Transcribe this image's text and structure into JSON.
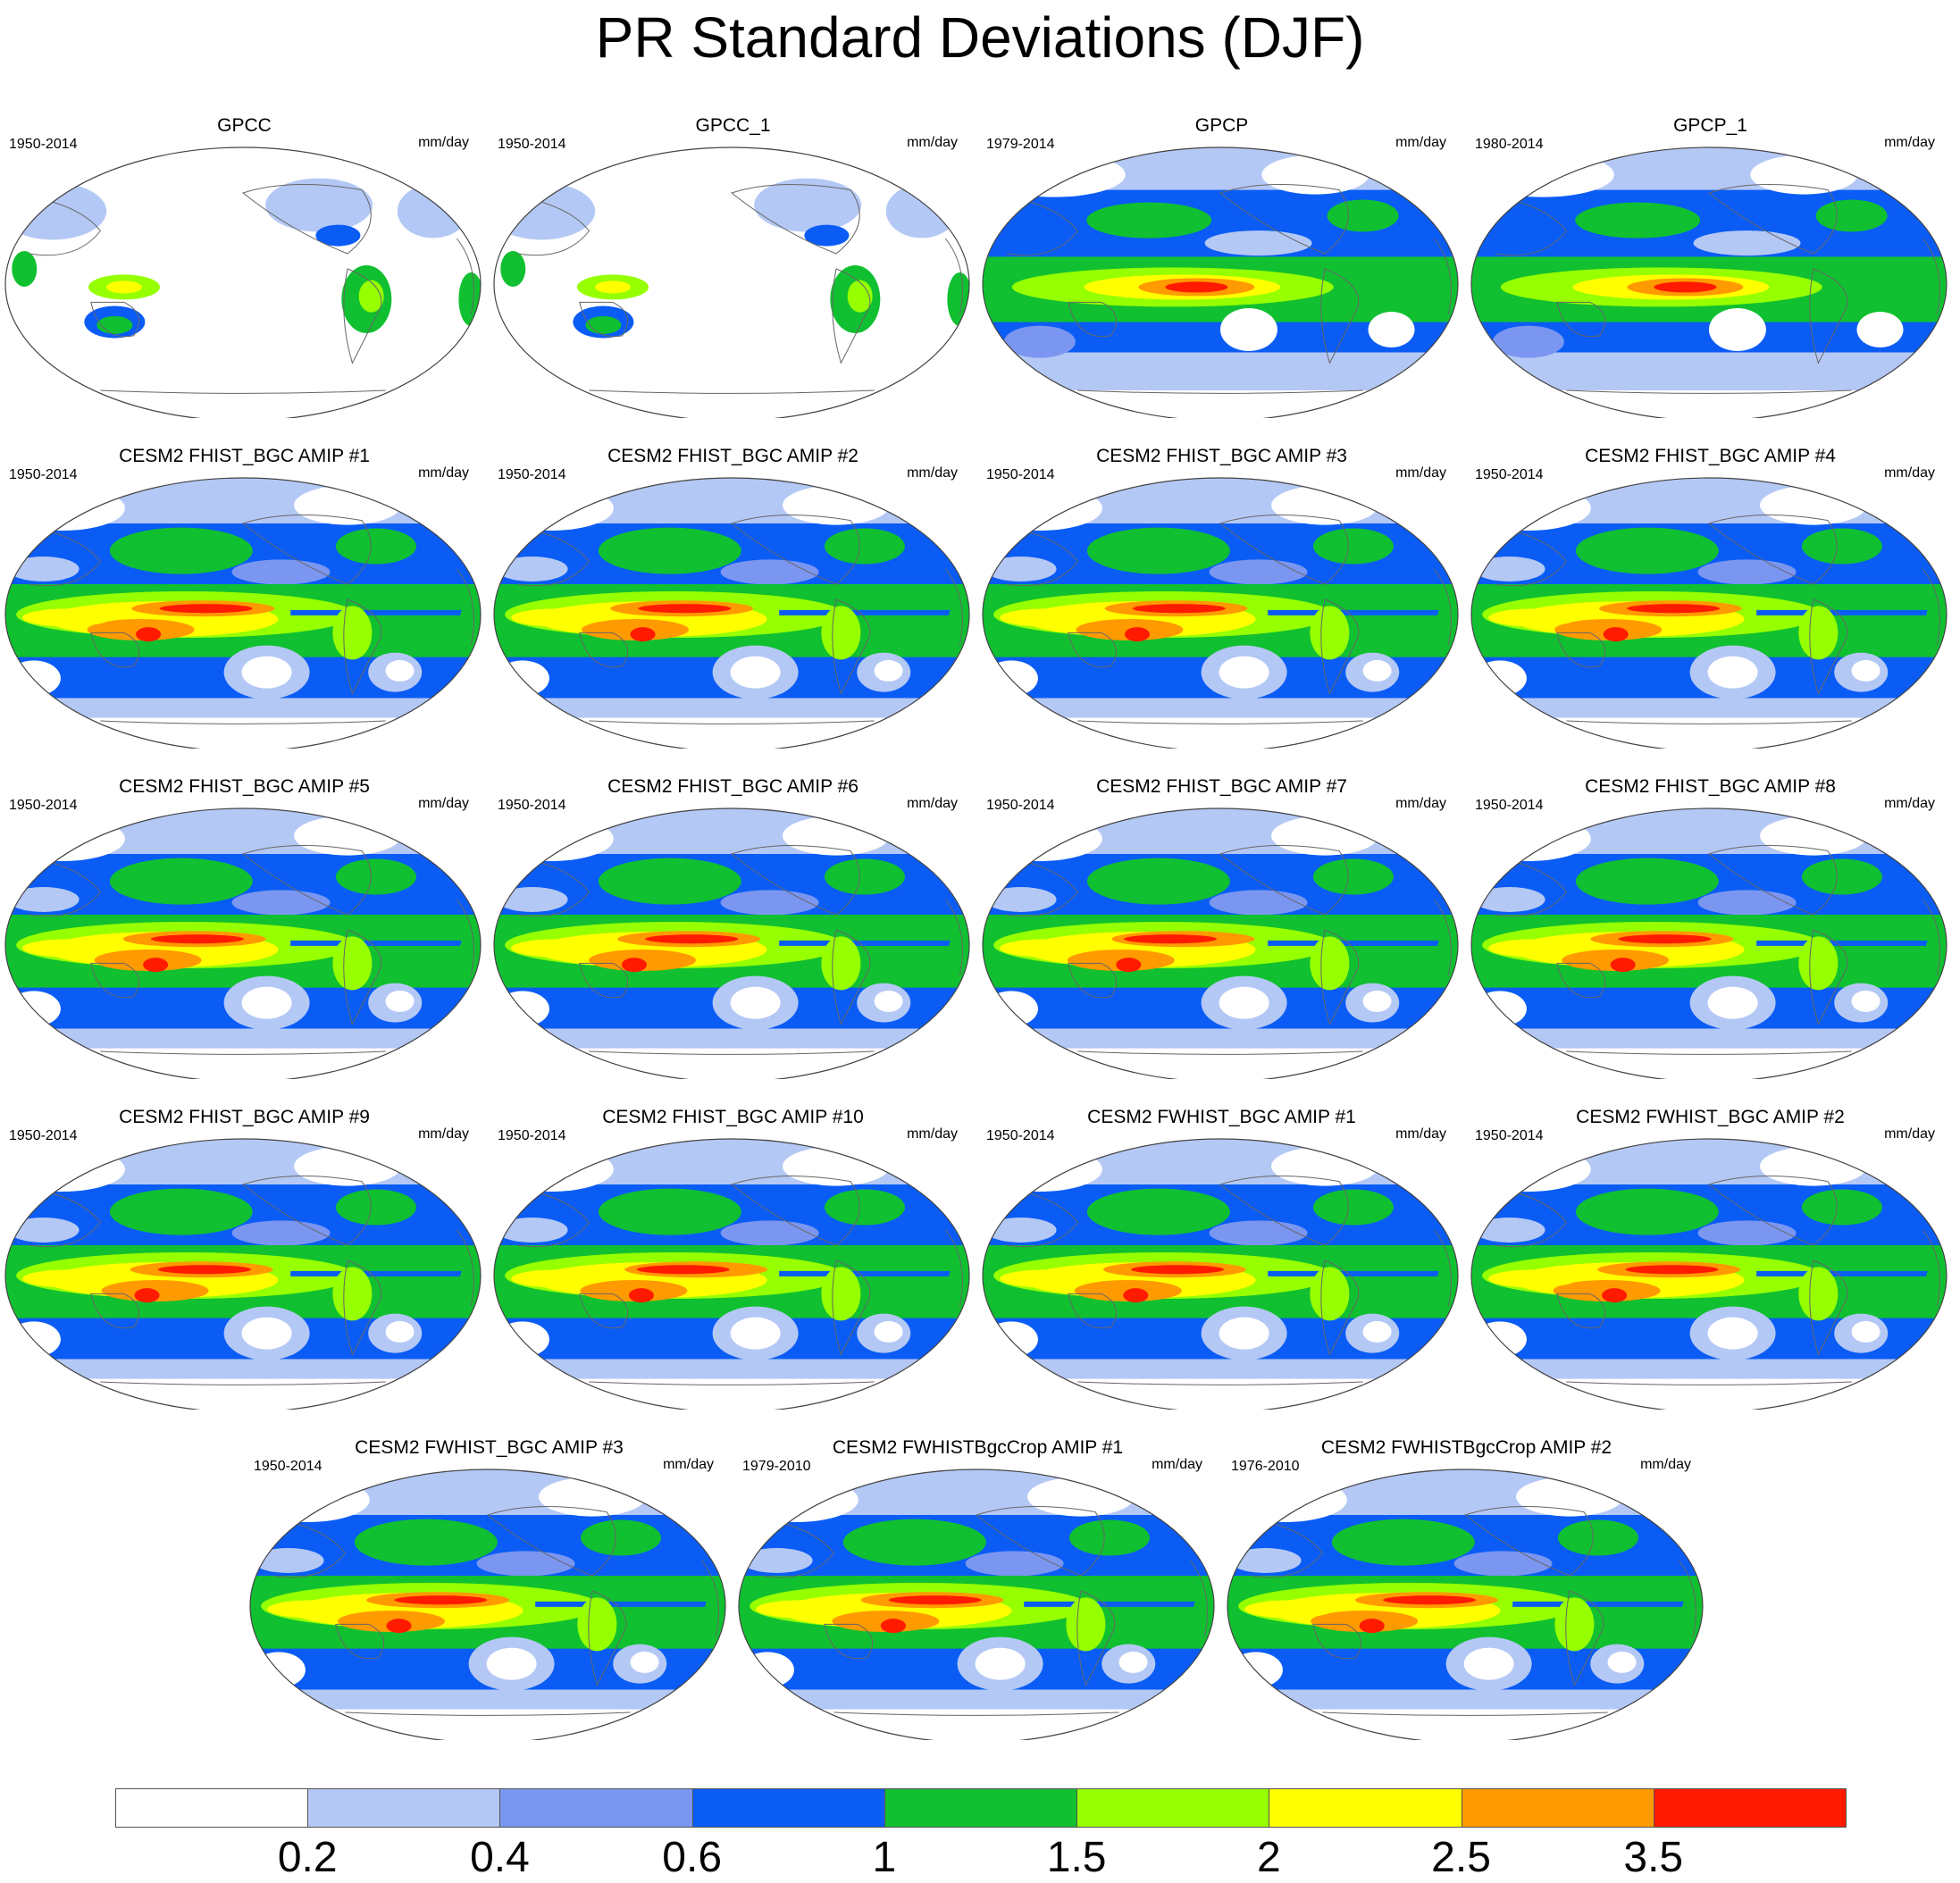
{
  "title": "PR Standard Deviations (DJF)",
  "units": "mm/day",
  "panels": [
    {
      "title": "GPCC",
      "years": "1950-2014",
      "type": "land"
    },
    {
      "title": "GPCC_1",
      "years": "1950-2014",
      "type": "land"
    },
    {
      "title": "GPCP",
      "years": "1979-2014",
      "type": "obs"
    },
    {
      "title": "GPCP_1",
      "years": "1980-2014",
      "type": "obs"
    },
    {
      "title": "CESM2 FHIST_BGC AMIP #1",
      "years": "1950-2014",
      "type": "model"
    },
    {
      "title": "CESM2 FHIST_BGC AMIP #2",
      "years": "1950-2014",
      "type": "model"
    },
    {
      "title": "CESM2 FHIST_BGC AMIP #3",
      "years": "1950-2014",
      "type": "model"
    },
    {
      "title": "CESM2 FHIST_BGC AMIP #4",
      "years": "1950-2014",
      "type": "model"
    },
    {
      "title": "CESM2 FHIST_BGC AMIP #5",
      "years": "1950-2014",
      "type": "model"
    },
    {
      "title": "CESM2 FHIST_BGC AMIP #6",
      "years": "1950-2014",
      "type": "model"
    },
    {
      "title": "CESM2 FHIST_BGC AMIP #7",
      "years": "1950-2014",
      "type": "model"
    },
    {
      "title": "CESM2 FHIST_BGC AMIP #8",
      "years": "1950-2014",
      "type": "model"
    },
    {
      "title": "CESM2 FHIST_BGC AMIP #9",
      "years": "1950-2014",
      "type": "model"
    },
    {
      "title": "CESM2 FHIST_BGC AMIP #10",
      "years": "1950-2014",
      "type": "model"
    },
    {
      "title": "CESM2 FWHIST_BGC AMIP #1",
      "years": "1950-2014",
      "type": "model"
    },
    {
      "title": "CESM2 FWHIST_BGC AMIP #2",
      "years": "1950-2014",
      "type": "model"
    },
    {
      "title": "CESM2 FWHIST_BGC AMIP #3",
      "years": "1950-2014",
      "type": "model"
    },
    {
      "title": "CESM2 FWHISTBgcCrop AMIP #1",
      "years": "1979-2010",
      "type": "model"
    },
    {
      "title": "CESM2 FWHISTBgcCrop AMIP #2",
      "years": "1976-2010",
      "type": "model"
    }
  ],
  "colorbar": {
    "colors": [
      "#ffffff",
      "#b4c8f5",
      "#7b96f0",
      "#0a5cf5",
      "#10c030",
      "#96ff00",
      "#ffff00",
      "#ff9a00",
      "#ff1a00"
    ],
    "labels": [
      "0.2",
      "0.4",
      "0.6",
      "1",
      "1.5",
      "2",
      "2.5",
      "3.5"
    ]
  }
}
